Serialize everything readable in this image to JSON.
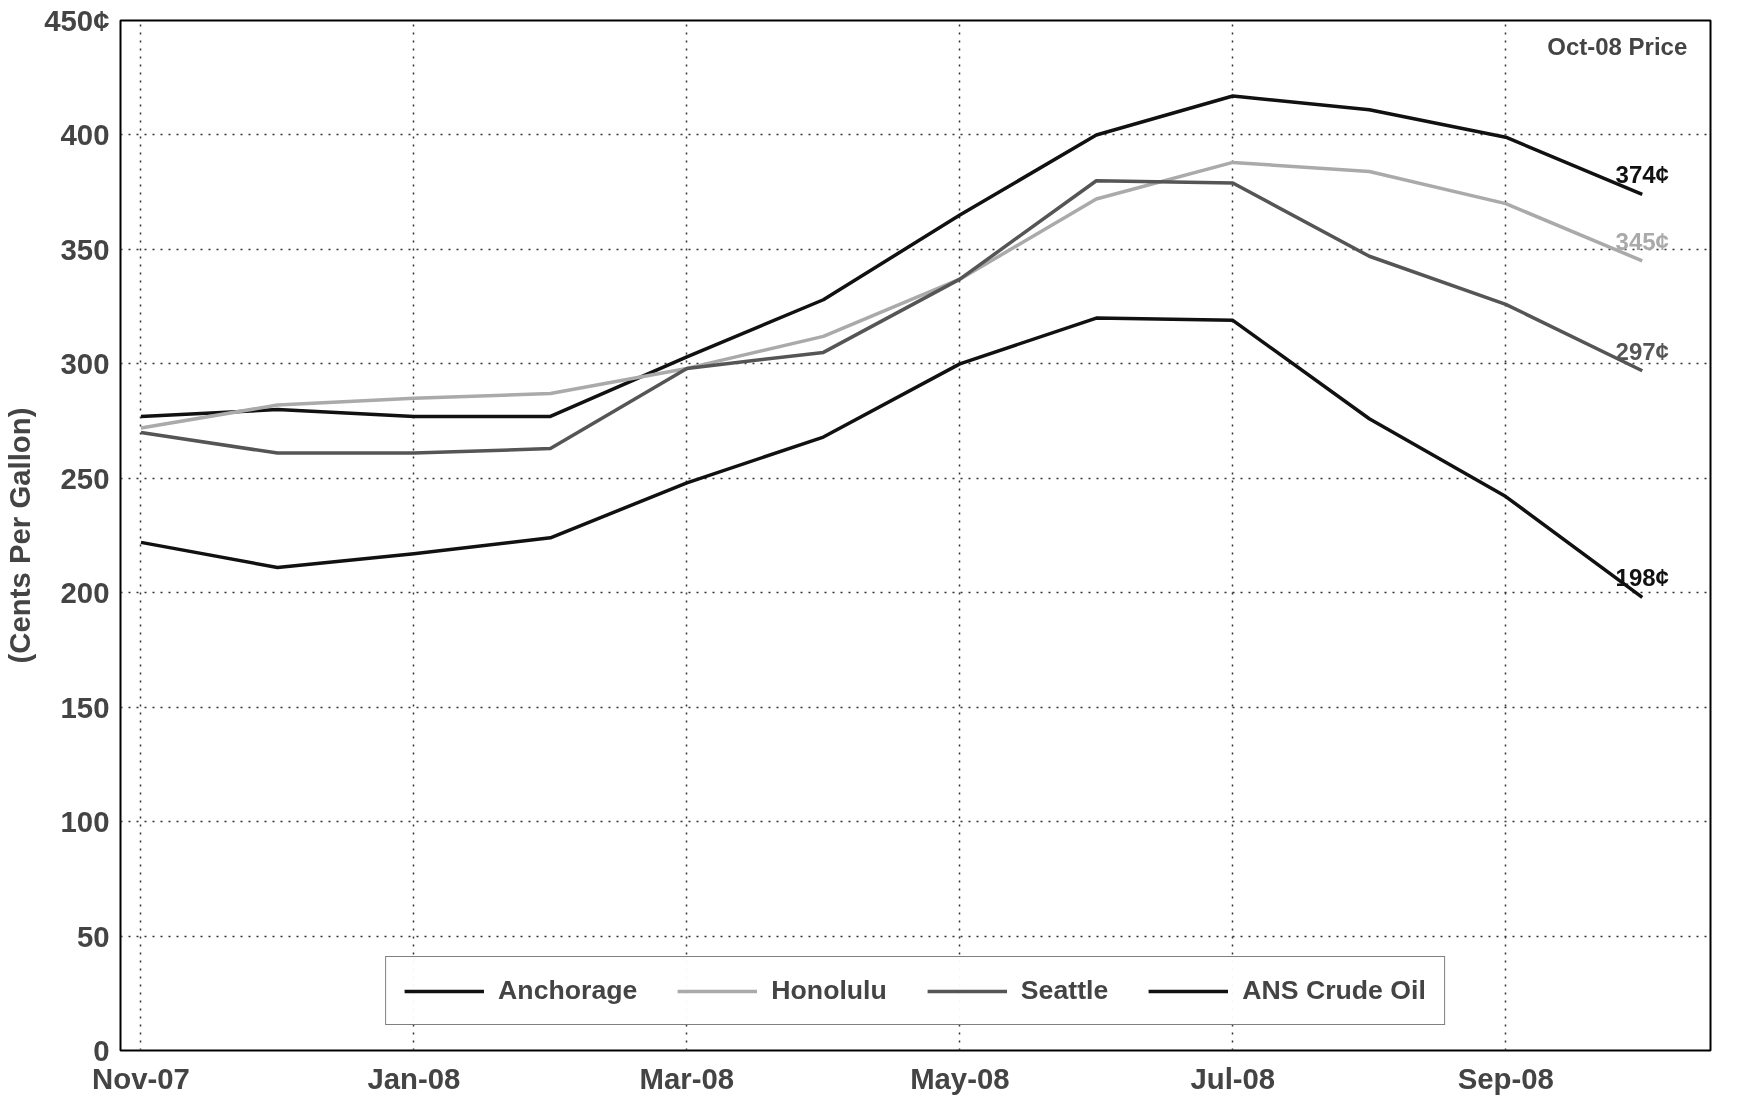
{
  "chart_data": {
    "type": "line",
    "ylabel": "(Cents Per Gallon)",
    "categories": [
      "Nov-07",
      null,
      "Jan-08",
      null,
      "Mar-08",
      null,
      "May-08",
      null,
      "Jul-08",
      null,
      "Sep-08",
      null
    ],
    "series": [
      {
        "name": "Anchorage",
        "color": "#111111",
        "values": [
          277,
          280,
          277,
          277,
          303,
          328,
          365,
          400,
          417,
          411,
          399,
          374
        ],
        "value_labels": [
          null,
          null,
          null,
          null,
          null,
          null,
          null,
          null,
          null,
          null,
          null,
          "374¢"
        ]
      },
      {
        "name": "Honolulu",
        "color": "#aaaaaa",
        "values": [
          272,
          282,
          285,
          287,
          298,
          312,
          337,
          372,
          388,
          384,
          370,
          345
        ],
        "value_labels": [
          null,
          null,
          null,
          null,
          null,
          null,
          null,
          null,
          null,
          null,
          null,
          "345¢"
        ]
      },
      {
        "name": "Seattle",
        "color": "#555555",
        "values": [
          270,
          261,
          261,
          263,
          298,
          305,
          337,
          380,
          379,
          347,
          326,
          297
        ],
        "value_labels": [
          null,
          null,
          null,
          null,
          null,
          null,
          null,
          null,
          null,
          null,
          null,
          "297¢"
        ]
      },
      {
        "name": "ANS Crude Oil",
        "color": "#111111",
        "values": [
          222,
          211,
          217,
          224,
          248,
          268,
          300,
          320,
          319,
          276,
          242,
          198
        ],
        "value_labels": [
          null,
          null,
          null,
          null,
          null,
          null,
          null,
          null,
          null,
          null,
          null,
          "198¢"
        ]
      }
    ],
    "ylim": [
      0,
      450
    ],
    "yticks": [
      0,
      50,
      100,
      150,
      200,
      250,
      300,
      350,
      400,
      {
        "value": 450,
        "label": "450¢"
      }
    ],
    "annotations": [
      "Oct-08 Price"
    ],
    "grid": true,
    "legend": "bottom",
    "marker": "none",
    "line_style": "solid"
  }
}
